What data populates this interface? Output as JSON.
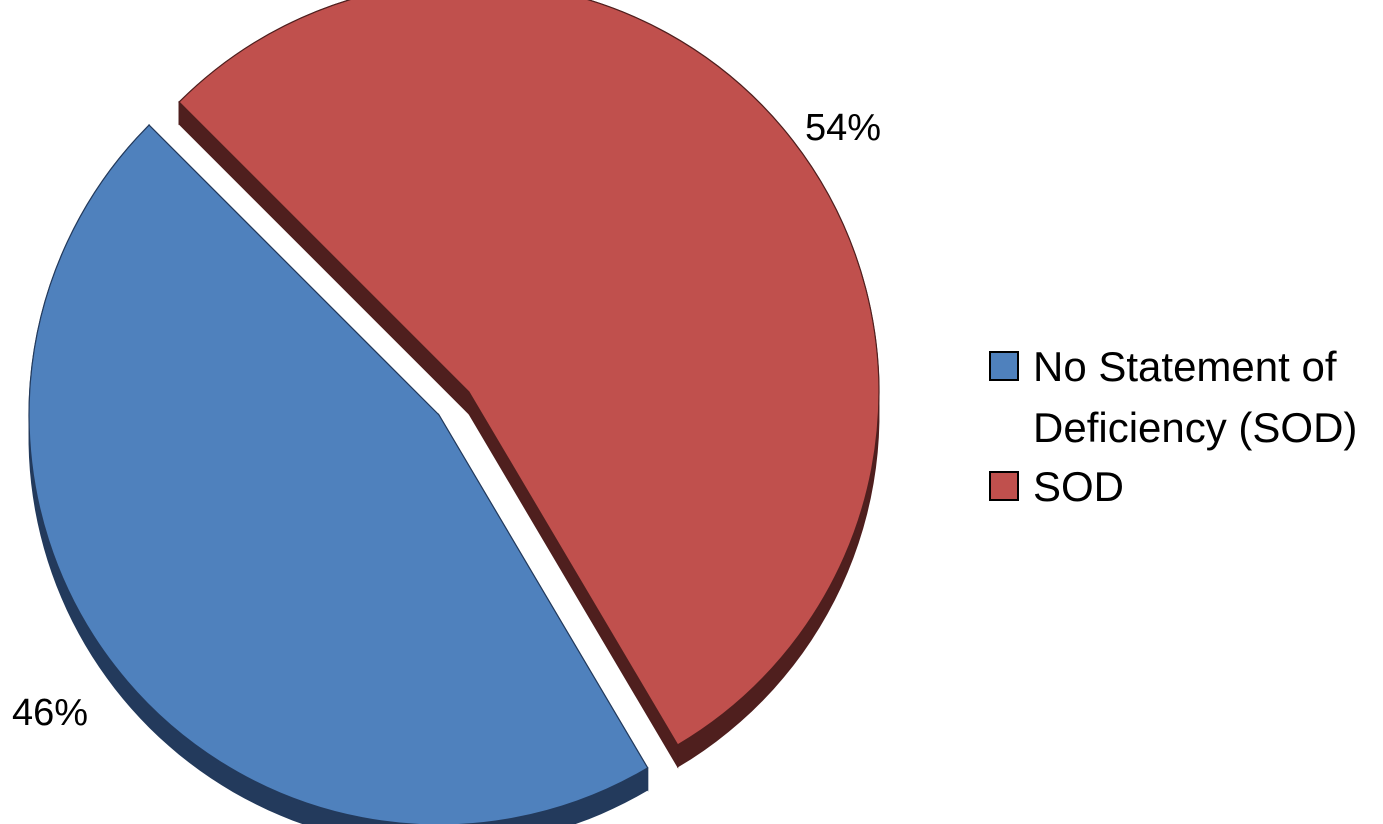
{
  "chart_data": {
    "type": "pie",
    "style": "3d-exploded",
    "slices": [
      {
        "label": "No Statement of Deficiency (SOD)",
        "legend_lines": [
          "No Statement of",
          "Deficiency (SOD)"
        ],
        "value": 46,
        "display": "46%",
        "color": "#4f81bd",
        "side_color": "#233a5c"
      },
      {
        "label": "SOD",
        "legend_lines": [
          "SOD"
        ],
        "value": 54,
        "display": "54%",
        "color": "#c0504d",
        "side_color": "#4f1f1e"
      }
    ],
    "legend_position": "right"
  }
}
